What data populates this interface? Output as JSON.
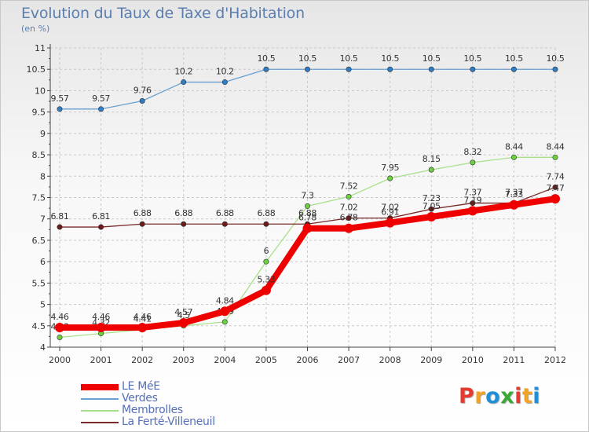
{
  "title": "Evolution du Taux de Taxe d'Habitation",
  "subtitle": "(en %)",
  "logo": "Proxiti",
  "colors": {
    "grid": "#c9c9c9",
    "axis": "#444444",
    "tick_label": "#333333",
    "value_label": "#333333",
    "logo": [
      "#e63a2e",
      "#f1a327",
      "#1f8fd8",
      "#3aa935",
      "#e63a2e",
      "#f1a327",
      "#1f8fd8"
    ]
  },
  "chart_data": {
    "type": "line",
    "title": "Evolution du Taux de Taxe d'Habitation",
    "subtitle": "(en %)",
    "xlabel": "",
    "ylabel": "(en %)",
    "ylim": [
      4,
      11
    ],
    "y_ticks": [
      "4",
      "4.5",
      "5",
      "5.5",
      "6",
      "6.5",
      "7",
      "7.5",
      "8",
      "8.5",
      "9",
      "9.5",
      "10",
      "10.5",
      "11"
    ],
    "x": [
      "2000",
      "2001",
      "2002",
      "2003",
      "2004",
      "2005",
      "2006",
      "2007",
      "2008",
      "2009",
      "2010",
      "2011",
      "2012"
    ],
    "grid": true,
    "legend_position": "bottom-left",
    "series": [
      {
        "name": "Verdes",
        "color": "#6aa0d0",
        "marker": "#2f7dc4",
        "values": [
          9.57,
          9.57,
          9.76,
          10.2,
          10.2,
          10.5,
          10.5,
          10.5,
          10.5,
          10.5,
          10.5,
          10.5,
          10.5
        ],
        "labels": [
          "9.57",
          "9.57",
          "9.76",
          "10.2",
          "10.2",
          "10.5",
          "10.5",
          "10.5",
          "10.5",
          "10.5",
          "10.5",
          "10.5",
          "10.5"
        ]
      },
      {
        "name": "Membrolles",
        "color": "#a8e08a",
        "marker": "#6cd040",
        "values": [
          4.23,
          4.32,
          4.41,
          4.5,
          4.59,
          6.0,
          7.3,
          7.52,
          7.95,
          8.15,
          8.32,
          8.44,
          8.44
        ],
        "labels": [
          "4.23",
          "4.32",
          "4.41",
          "4.5",
          "4.59",
          "6",
          "7.3",
          "7.52",
          "7.95",
          "8.15",
          "8.32",
          "8.44",
          "8.44"
        ]
      },
      {
        "name": "La Ferté-Villeneuil",
        "color": "#7a2a2a",
        "marker": "#6a1c1c",
        "values": [
          6.81,
          6.81,
          6.88,
          6.88,
          6.88,
          6.88,
          6.88,
          7.02,
          7.02,
          7.23,
          7.37,
          7.37,
          7.74
        ],
        "labels": [
          "6.81",
          "6.81",
          "6.88",
          "6.88",
          "6.88",
          "6.88",
          "6.88",
          "7.02",
          "7.02",
          "7.23",
          "7.37",
          "7.37",
          "7.74"
        ]
      },
      {
        "name": "LE MéE",
        "color": "#ee0000",
        "marker": "#ee0000",
        "values": [
          4.46,
          4.46,
          4.46,
          4.57,
          4.84,
          5.33,
          6.78,
          6.78,
          6.91,
          7.05,
          7.19,
          7.33,
          7.47
        ],
        "labels": [
          "4.46",
          "4.46",
          "4.46",
          "4.57",
          "4.84",
          "5.33",
          "6.78",
          "6.78",
          "6.91",
          "7.05",
          "7.19",
          "7.33",
          "7.47"
        ]
      }
    ],
    "legend_order": [
      "LE MéE",
      "Verdes",
      "Membrolles",
      "La Ferté-Villeneuil"
    ]
  }
}
